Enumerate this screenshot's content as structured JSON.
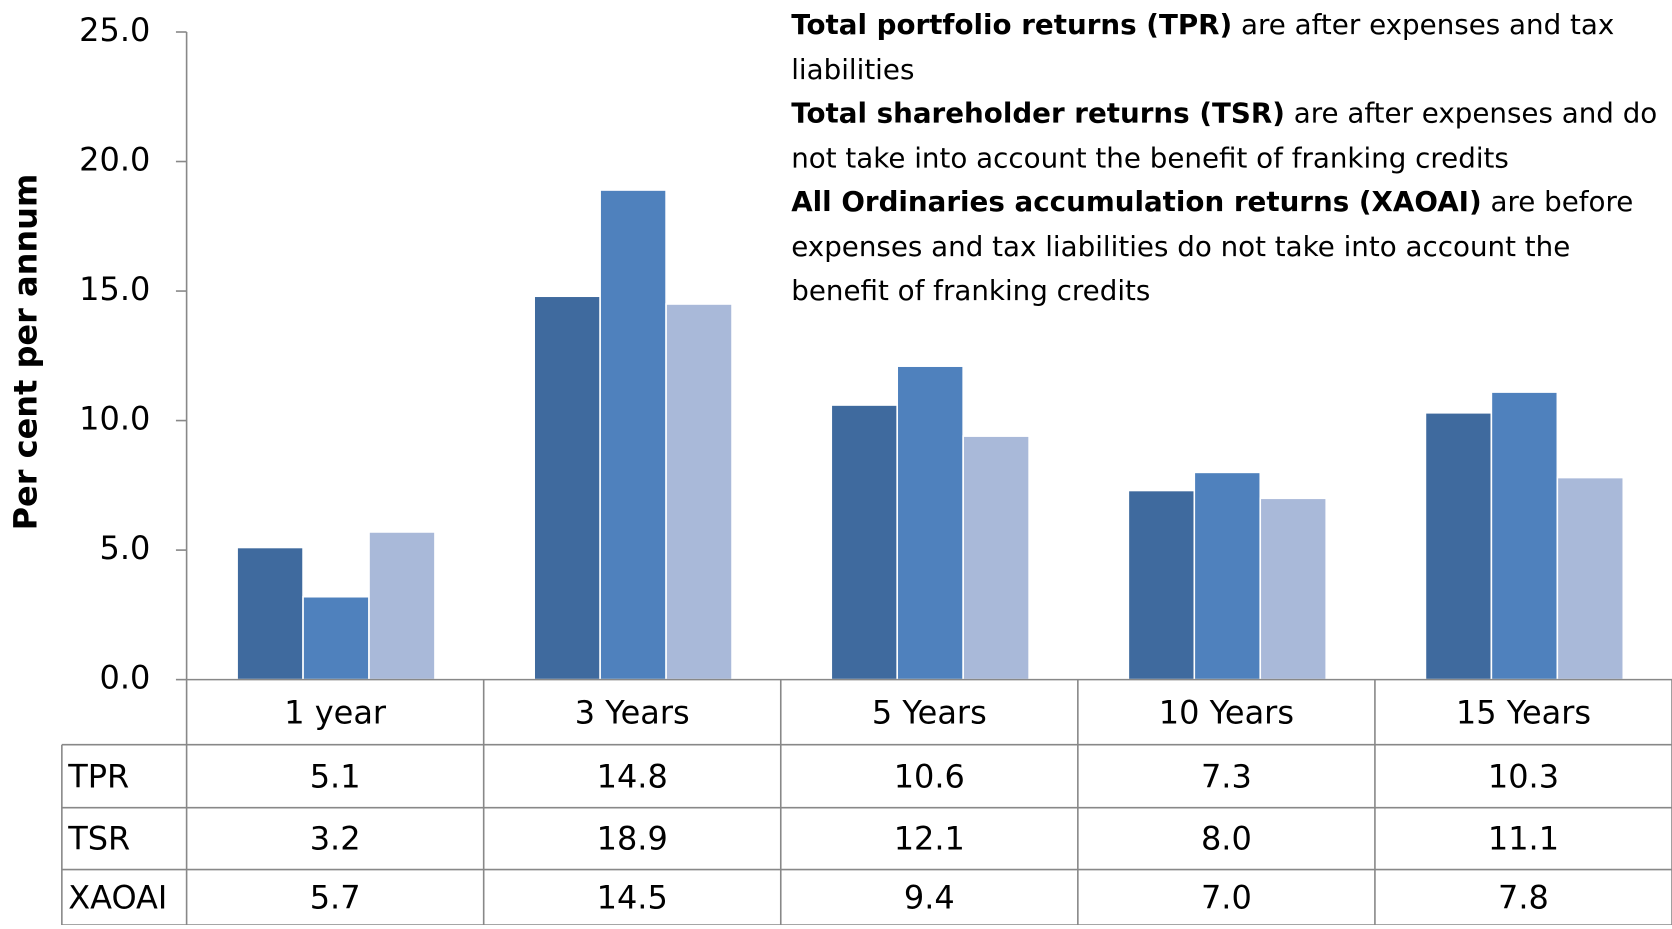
{
  "chart_data": {
    "type": "bar",
    "y_label": "Per cent per annum",
    "annotations": [
      {
        "bold": "Total portfolio returns (TPR)",
        "text": " are after expenses and tax liabilities"
      },
      {
        "bold": "Total shareholder returns (TSR)",
        "text": " are after expenses and do not take into account the benefit of franking credits"
      },
      {
        "bold": "All Ordinaries accumulation returns (XAOAI)",
        "text": " are before expenses and  tax liabilities do not take into account the benefit of franking credits"
      }
    ],
    "categories": [
      "1 year",
      "3 Years",
      "5 Years",
      "10 Years",
      "15 Years"
    ],
    "series": [
      {
        "name": "TPR",
        "color": "#3f6a9e",
        "values": [
          5.1,
          14.8,
          10.6,
          7.3,
          10.3
        ],
        "value_labels": [
          "5.1",
          "14.8",
          "10.6",
          "7.3",
          "10.3"
        ]
      },
      {
        "name": "TSR",
        "color": "#4f81bd",
        "values": [
          3.2,
          18.9,
          12.1,
          8.0,
          11.1
        ],
        "value_labels": [
          "3.2",
          "18.9",
          "12.1",
          "8.0",
          "11.1"
        ]
      },
      {
        "name": "XAOAI",
        "color": "#a9b9d9",
        "values": [
          5.7,
          14.5,
          9.4,
          7.0,
          7.8
        ],
        "value_labels": [
          "5.7",
          "14.5",
          "9.4",
          "7.0",
          "7.8"
        ]
      }
    ],
    "ylim": [
      0,
      25
    ],
    "yticks": [
      {
        "value": 0,
        "label": "0.0"
      },
      {
        "value": 5,
        "label": "5.0"
      },
      {
        "value": 10,
        "label": "10.0"
      },
      {
        "value": 15,
        "label": "15.0"
      },
      {
        "value": 20,
        "label": "20.0"
      },
      {
        "value": 25,
        "label": "25.0"
      }
    ]
  }
}
